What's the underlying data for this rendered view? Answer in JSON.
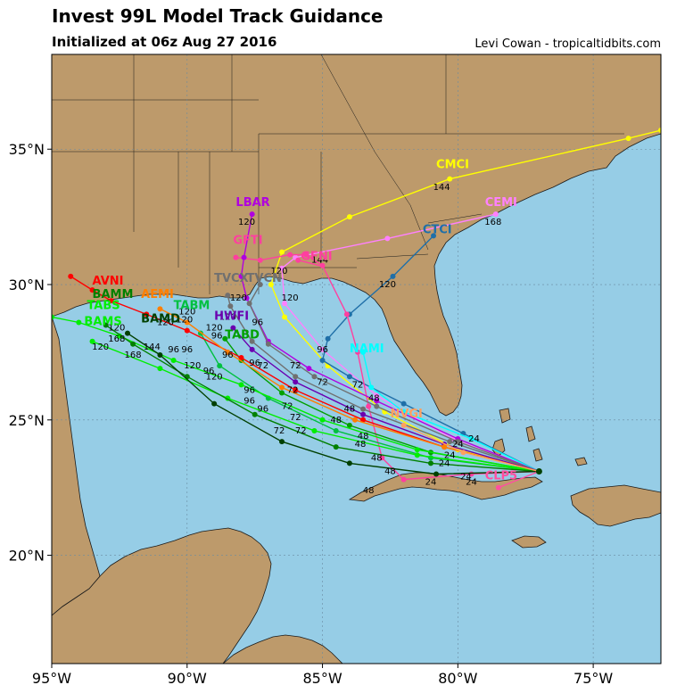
{
  "header": {
    "title": "Invest 99L Model Track Guidance",
    "subtitle": "Initialized at 06z Aug 27 2016",
    "credit": "Levi Cowan - tropicaltidbits.com"
  },
  "map": {
    "lon_range": [
      -95,
      -72.5
    ],
    "lat_range": [
      16,
      38.5
    ],
    "lat_ticks": [
      {
        "v": 20,
        "label": "20°N"
      },
      {
        "v": 25,
        "label": "25°N"
      },
      {
        "v": 30,
        "label": "30°N"
      },
      {
        "v": 35,
        "label": "35°N"
      }
    ],
    "lon_ticks": [
      {
        "v": -95,
        "label": "95°W"
      },
      {
        "v": -90,
        "label": "90°W"
      },
      {
        "v": -85,
        "label": "85°W"
      },
      {
        "v": -80,
        "label": "80°W"
      },
      {
        "v": -75,
        "label": "75°W"
      }
    ],
    "colors": {
      "ocean": "#96cde6",
      "land": "#bd9a6b",
      "border": "#1a1a1a",
      "grid": "#6a8aa0"
    }
  },
  "chart_data": {
    "type": "map-tracks",
    "origin": [
      -77.0,
      23.1
    ],
    "tracks": [
      {
        "name": "CMCI",
        "color": "#ffff00",
        "label_at": [
          -80.8,
          34.3
        ],
        "points": [
          [
            -77.0,
            23.1
          ],
          [
            -80.0,
            23.9
          ],
          [
            -82.7,
            25.3
          ],
          [
            -84.8,
            27.0
          ],
          [
            -86.4,
            28.8
          ],
          [
            -86.9,
            30.0
          ],
          [
            -86.5,
            31.2
          ],
          [
            -84.0,
            32.5
          ],
          [
            -80.3,
            33.9
          ],
          [
            -73.7,
            35.4
          ],
          [
            -72.5,
            35.7
          ]
        ],
        "hours": [
          {
            "t": "144",
            "at": [
              -80.6,
              33.5
            ]
          }
        ]
      },
      {
        "name": "CEMI",
        "color": "#ff80ff",
        "label_at": [
          -79.0,
          32.9
        ],
        "points": [
          [
            -77.0,
            23.1
          ],
          [
            -80.2,
            24.3
          ],
          [
            -83.0,
            25.9
          ],
          [
            -85.0,
            27.6
          ],
          [
            -86.4,
            29.3
          ],
          [
            -86.5,
            30.6
          ],
          [
            -86.0,
            31.0
          ],
          [
            -82.6,
            31.7
          ],
          [
            -78.6,
            32.6
          ]
        ],
        "hours": [
          {
            "t": "168",
            "at": [
              -78.7,
              32.2
            ]
          }
        ]
      },
      {
        "name": "CTCI",
        "color": "#1f6fa8",
        "label_at": [
          -81.3,
          31.9
        ],
        "points": [
          [
            -77.0,
            23.1
          ],
          [
            -79.8,
            24.5
          ],
          [
            -82.0,
            25.6
          ],
          [
            -84.0,
            26.6
          ],
          [
            -85.0,
            27.2
          ],
          [
            -84.8,
            28.0
          ],
          [
            -84.0,
            28.9
          ],
          [
            -82.4,
            30.3
          ],
          [
            -80.9,
            31.8
          ]
        ],
        "hours": [
          {
            "t": "96",
            "at": [
              -85.0,
              27.5
            ]
          },
          {
            "t": "120",
            "at": [
              -82.6,
              29.9
            ]
          }
        ]
      },
      {
        "name": "NAMI",
        "color": "#00ffff",
        "label_at": [
          -84.0,
          27.5
        ],
        "points": [
          [
            -77.0,
            23.1
          ],
          [
            -79.5,
            24.3
          ],
          [
            -82.0,
            25.3
          ],
          [
            -83.2,
            26.2
          ],
          [
            -83.5,
            27.5
          ]
        ],
        "hours": [
          {
            "t": "72",
            "at": [
              -83.7,
              26.2
            ]
          }
        ]
      },
      {
        "name": "GFTI",
        "color": "#ff3f9f",
        "label_at": [
          -88.3,
          31.5
        ],
        "points": [
          [
            -77.0,
            23.1
          ],
          [
            -79.5,
            23.0
          ],
          [
            -82.0,
            22.8
          ],
          [
            -82.8,
            23.6
          ],
          [
            -83.3,
            25.5
          ],
          [
            -83.7,
            27.5
          ],
          [
            -84.1,
            28.9
          ],
          [
            -85.0,
            30.7
          ],
          [
            -85.6,
            31.1
          ],
          [
            -86.2,
            31.1
          ],
          [
            -87.3,
            30.9
          ],
          [
            -88.2,
            31.0
          ]
        ],
        "hours": [
          {
            "t": "120",
            "at": [
              -86.6,
              30.4
            ]
          },
          {
            "t": "144",
            "at": [
              -85.1,
              30.8
            ]
          }
        ]
      },
      {
        "name": "GFNI",
        "color": "#ff3f9f",
        "label_at": [
          -85.8,
          30.9
        ],
        "points": [
          [
            -85.1,
            30.7
          ],
          [
            -85.9,
            30.9
          ]
        ],
        "hours": []
      },
      {
        "name": "LBAR",
        "color": "#b000e0",
        "label_at": [
          -88.2,
          32.9
        ],
        "points": [
          [
            -77.0,
            23.1
          ],
          [
            -80.0,
            24.3
          ],
          [
            -83.0,
            25.7
          ],
          [
            -85.5,
            26.9
          ],
          [
            -87.0,
            27.9
          ],
          [
            -87.8,
            29.5
          ],
          [
            -88.0,
            30.3
          ],
          [
            -87.9,
            31.0
          ],
          [
            -87.6,
            32.6
          ]
        ],
        "hours": [
          {
            "t": "120",
            "at": [
              -87.8,
              32.2
            ]
          }
        ]
      },
      {
        "name": "TVCN",
        "color": "#707070",
        "label_at": [
          -87.8,
          30.1
        ],
        "points": [
          [
            -77.0,
            23.1
          ],
          [
            -80.0,
            24.2
          ],
          [
            -83.0,
            25.5
          ],
          [
            -85.3,
            26.6
          ],
          [
            -87.0,
            27.8
          ],
          [
            -87.7,
            29.3
          ],
          [
            -87.3,
            30.0
          ]
        ],
        "hours": [
          {
            "t": "120",
            "at": [
              -86.2,
              29.4
            ]
          }
        ]
      },
      {
        "name": "TVCX",
        "color": "#707070",
        "label_at": [
          -89.0,
          30.1
        ],
        "points": [
          [
            -77.0,
            23.1
          ],
          [
            -80.3,
            24.2
          ],
          [
            -83.5,
            25.4
          ],
          [
            -86.0,
            26.6
          ],
          [
            -87.6,
            27.9
          ],
          [
            -88.4,
            29.2
          ],
          [
            -88.5,
            29.6
          ]
        ],
        "hours": [
          {
            "t": "120",
            "at": [
              -88.1,
              29.4
            ]
          }
        ]
      },
      {
        "name": "HWFI",
        "color": "#6a00b0",
        "label_at": [
          -89.0,
          28.7
        ],
        "points": [
          [
            -77.0,
            23.1
          ],
          [
            -80.5,
            24.1
          ],
          [
            -83.5,
            25.2
          ],
          [
            -86.0,
            26.4
          ],
          [
            -87.6,
            27.6
          ],
          [
            -88.3,
            28.4
          ]
        ],
        "hours": [
          {
            "t": "96",
            "at": [
              -87.4,
              28.5
            ]
          }
        ]
      },
      {
        "name": "TABD",
        "color": "#00a000",
        "label_at": [
          -88.6,
          28.0
        ],
        "points": [
          [
            -77.0,
            23.1
          ],
          [
            -81.0,
            23.8
          ],
          [
            -84.0,
            24.8
          ],
          [
            -86.5,
            26.0
          ],
          [
            -88.0,
            27.2
          ],
          [
            -88.6,
            28.0
          ]
        ],
        "hours": [
          {
            "t": "120",
            "at": [
              -88.5,
              28.7
            ]
          }
        ]
      },
      {
        "name": "TABM",
        "color": "#00c040",
        "label_at": [
          -90.5,
          29.1
        ],
        "points": [
          [
            -77.0,
            23.1
          ],
          [
            -81.0,
            23.6
          ],
          [
            -84.5,
            24.6
          ],
          [
            -87.0,
            25.8
          ],
          [
            -88.8,
            27.0
          ],
          [
            -89.5,
            28.2
          ]
        ],
        "hours": [
          {
            "t": "120",
            "at": [
              -90.1,
              28.6
            ]
          },
          {
            "t": "96",
            "at": [
              -88.9,
              28.0
            ]
          }
        ]
      },
      {
        "name": "TABS",
        "color": "#00ee00",
        "label_at": [
          -93.7,
          29.1
        ],
        "points": [
          [
            -77.0,
            23.1
          ],
          [
            -81.5,
            23.9
          ],
          [
            -85.0,
            25.0
          ],
          [
            -88.0,
            26.3
          ],
          [
            -90.5,
            27.2
          ],
          [
            -92.5,
            28.1
          ],
          [
            -94.0,
            28.6
          ],
          [
            -95.0,
            28.8
          ]
        ],
        "hours": [
          {
            "t": "120",
            "at": [
              -93.2,
              27.6
            ]
          }
        ]
      },
      {
        "name": "BAMS",
        "color": "#00ee00",
        "label_at": [
          -93.8,
          28.5
        ],
        "points": [
          [
            -77.0,
            23.1
          ],
          [
            -81.5,
            23.7
          ],
          [
            -85.3,
            24.6
          ],
          [
            -88.5,
            25.8
          ],
          [
            -91.0,
            26.9
          ],
          [
            -93.5,
            27.9
          ]
        ],
        "hours": []
      },
      {
        "name": "BAMM",
        "color": "#008000",
        "label_at": [
          -93.5,
          29.5
        ],
        "points": [
          [
            -77.0,
            23.1
          ],
          [
            -81.0,
            23.4
          ],
          [
            -84.5,
            24.0
          ],
          [
            -87.5,
            25.2
          ],
          [
            -90.0,
            26.6
          ],
          [
            -92.0,
            27.8
          ],
          [
            -93.0,
            28.5
          ]
        ],
        "hours": [
          {
            "t": "120",
            "at": [
              -92.6,
              28.3
            ]
          },
          {
            "t": "168",
            "at": [
              -92.6,
              27.9
            ]
          }
        ]
      },
      {
        "name": "BAMD",
        "color": "#004000",
        "label_at": [
          -91.7,
          28.6
        ],
        "points": [
          [
            -77.0,
            23.1
          ],
          [
            -80.8,
            23.0
          ],
          [
            -84.0,
            23.4
          ],
          [
            -86.5,
            24.2
          ],
          [
            -89.0,
            25.6
          ],
          [
            -91.0,
            27.4
          ],
          [
            -92.2,
            28.2
          ]
        ],
        "hours": [
          {
            "t": "144",
            "at": [
              -91.3,
              27.6
            ]
          },
          {
            "t": "168",
            "at": [
              -92.0,
              27.3
            ]
          }
        ]
      },
      {
        "name": "AVNI",
        "color": "#ff0000",
        "label_at": [
          -93.5,
          30.0
        ],
        "points": [
          [
            -77.0,
            23.1
          ],
          [
            -80.5,
            24.0
          ],
          [
            -83.5,
            25.0
          ],
          [
            -86.0,
            26.1
          ],
          [
            -88.0,
            27.3
          ],
          [
            -90.0,
            28.3
          ],
          [
            -91.5,
            28.9
          ],
          [
            -92.8,
            29.4
          ],
          [
            -93.5,
            29.8
          ],
          [
            -94.3,
            30.3
          ]
        ],
        "hours": [
          {
            "t": "120",
            "at": [
              -90.8,
              28.5
            ]
          }
        ]
      },
      {
        "name": "AEMI",
        "color": "#ff7f00",
        "label_at": [
          -91.7,
          29.5
        ],
        "points": [
          [
            -77.0,
            23.1
          ],
          [
            -80.5,
            24.0
          ],
          [
            -83.8,
            25.0
          ],
          [
            -86.5,
            26.2
          ],
          [
            -88.5,
            27.5
          ],
          [
            -90.0,
            28.6
          ],
          [
            -91.0,
            29.1
          ]
        ],
        "hours": [
          {
            "t": "120",
            "at": [
              -90.0,
              28.9
            ]
          }
        ]
      },
      {
        "name": "NVGI",
        "color": "#ffa060",
        "label_at": [
          -82.5,
          25.1
        ],
        "points": [
          [
            -77.0,
            23.1
          ],
          [
            -79.8,
            23.8
          ],
          [
            -82.0,
            24.8
          ]
        ],
        "hours": []
      },
      {
        "name": "CLP5",
        "color": "#ff4fa0",
        "label_at": [
          -79.0,
          22.8
        ],
        "points": [
          [
            -77.0,
            23.1
          ],
          [
            -78.5,
            22.5
          ]
        ],
        "hours": [
          {
            "t": "24",
            "at": [
              -79.7,
              22.8
            ]
          }
        ]
      }
    ],
    "hour_markers": [
      {
        "t": "48",
        "at": [
          -83.1,
          25.7
        ]
      },
      {
        "t": "48",
        "at": [
          -84.0,
          25.3
        ]
      },
      {
        "t": "48",
        "at": [
          -84.5,
          24.9
        ]
      },
      {
        "t": "48",
        "at": [
          -83.5,
          24.3
        ]
      },
      {
        "t": "48",
        "at": [
          -83.0,
          23.5
        ]
      },
      {
        "t": "48",
        "at": [
          -82.5,
          23.0
        ]
      },
      {
        "t": "48",
        "at": [
          -83.3,
          22.3
        ]
      },
      {
        "t": "48",
        "at": [
          -83.6,
          24.0
        ]
      },
      {
        "t": "72",
        "at": [
          -86.0,
          26.9
        ]
      },
      {
        "t": "72",
        "at": [
          -85.0,
          26.3
        ]
      },
      {
        "t": "72",
        "at": [
          -86.3,
          25.4
        ]
      },
      {
        "t": "72",
        "at": [
          -86.6,
          24.5
        ]
      },
      {
        "t": "72",
        "at": [
          -85.8,
          24.5
        ]
      },
      {
        "t": "72",
        "at": [
          -86.0,
          25.0
        ]
      },
      {
        "t": "72",
        "at": [
          -87.2,
          26.9
        ]
      },
      {
        "t": "72",
        "at": [
          -86.1,
          26.0
        ]
      },
      {
        "t": "96",
        "at": [
          -87.7,
          25.6
        ]
      },
      {
        "t": "96",
        "at": [
          -87.7,
          26.0
        ]
      },
      {
        "t": "96",
        "at": [
          -87.2,
          25.3
        ]
      },
      {
        "t": "96",
        "at": [
          -89.2,
          26.7
        ]
      },
      {
        "t": "96",
        "at": [
          -90.0,
          27.5
        ]
      },
      {
        "t": "96",
        "at": [
          -90.5,
          27.5
        ]
      },
      {
        "t": "96",
        "at": [
          -88.5,
          27.3
        ]
      },
      {
        "t": "96",
        "at": [
          -87.5,
          27.0
        ]
      },
      {
        "t": "120",
        "at": [
          -89.0,
          26.5
        ]
      },
      {
        "t": "120",
        "at": [
          -89.8,
          26.9
        ]
      },
      {
        "t": "120",
        "at": [
          -89.0,
          28.3
        ]
      },
      {
        "t": "24",
        "at": [
          -80.5,
          23.3
        ]
      },
      {
        "t": "24",
        "at": [
          -80.0,
          24.0
        ]
      },
      {
        "t": "24",
        "at": [
          -79.4,
          24.2
        ]
      },
      {
        "t": "24",
        "at": [
          -79.5,
          22.6
        ]
      },
      {
        "t": "24",
        "at": [
          -81.0,
          22.6
        ]
      },
      {
        "t": "24",
        "at": [
          -80.3,
          23.6
        ]
      }
    ]
  }
}
